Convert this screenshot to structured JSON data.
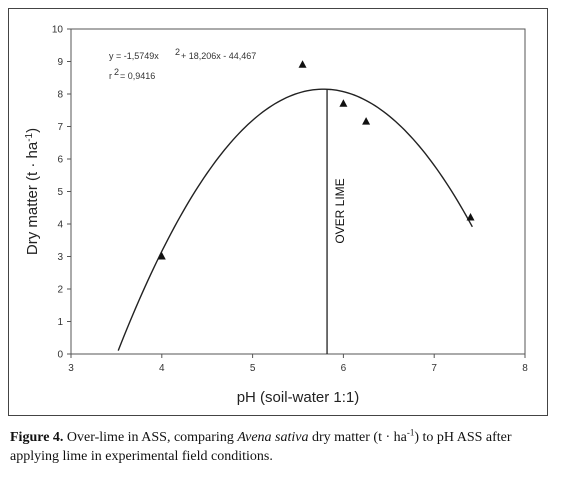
{
  "chart_data": {
    "type": "scatter",
    "xlabel": "pH (soil-water 1:1)",
    "ylabel": "Dry matter (t · ha",
    "ylabel_sup": "-1",
    "ylabel_end": ")",
    "xlim": [
      3,
      8
    ],
    "ylim": [
      0,
      10
    ],
    "x_ticks": [
      "3",
      "4",
      "5",
      "6",
      "7",
      "8"
    ],
    "y_ticks": [
      "0",
      "1",
      "2",
      "3",
      "4",
      "5",
      "6",
      "7",
      "8",
      "9",
      "10"
    ],
    "points": [
      {
        "x": 4.0,
        "y": 3.0
      },
      {
        "x": 5.55,
        "y": 8.9
      },
      {
        "x": 6.0,
        "y": 7.7
      },
      {
        "x": 6.25,
        "y": 7.15
      },
      {
        "x": 7.4,
        "y": 4.2
      }
    ],
    "fit": {
      "a": -1.5749,
      "b": 18.206,
      "c": -44.467,
      "x_from": 3.52,
      "x_to": 7.42
    },
    "equation_line1_left": "y = -1,5749x",
    "equation_line1_right": "+ 18,206x - 44,467",
    "equation_line1_sup": "2",
    "equation_line2_sup": "2",
    "equation_line2": "= 0,9416",
    "equation_line2_prefix": "r",
    "annotation": "OVER LIME",
    "annotation_x": 5.82,
    "grid": false,
    "legend": "none"
  },
  "caption": {
    "label": "Figure 4.",
    "text1": " Over-lime in ASS, comparing ",
    "species": "Avena sativa",
    "text2": " dry matter (t · ha",
    "sup": "-1",
    "text3": ") to pH ASS after applying lime in experimental field conditions."
  }
}
